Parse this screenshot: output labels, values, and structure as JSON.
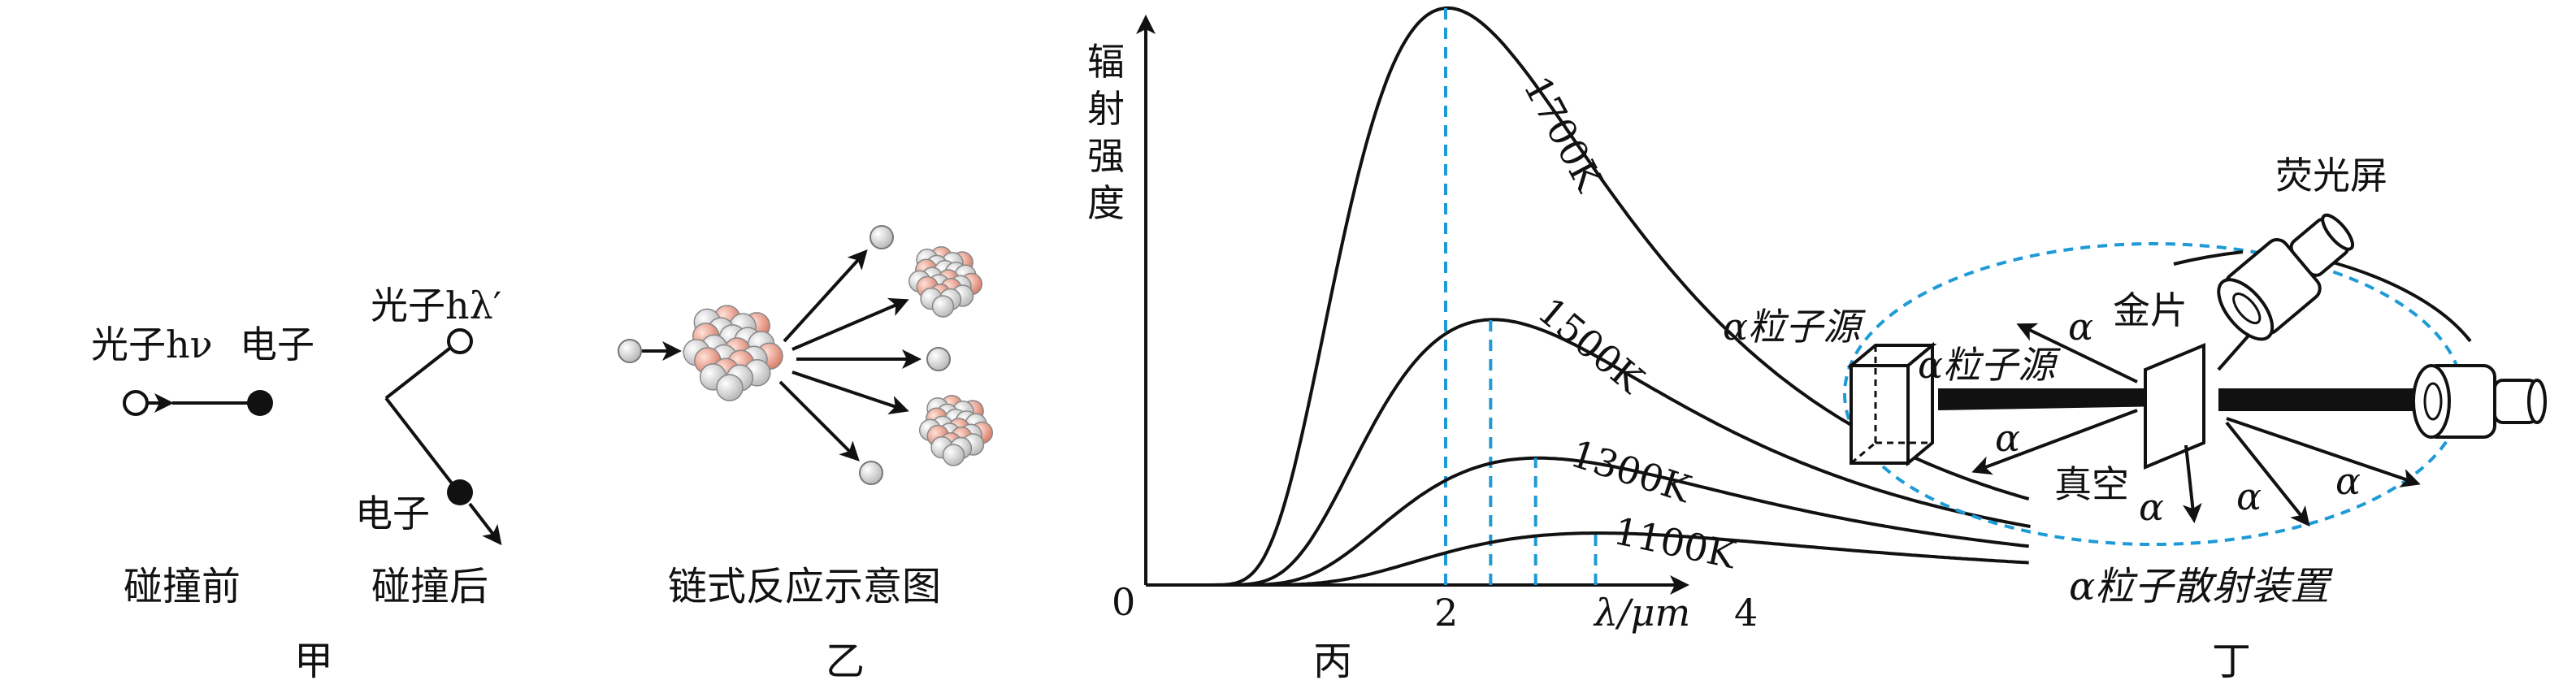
{
  "panel_jia": {
    "photon_before": "光子hν",
    "electron_before": "电子",
    "caption_before": "碰撞前",
    "photon_after": "光子hλ′",
    "electron_after": "电子",
    "caption_after": "碰撞后",
    "panel_label": "甲"
  },
  "panel_yi": {
    "caption": "链式反应示意图",
    "panel_label": "乙",
    "colors": {
      "nucleon_red": "#e89a86",
      "nucleon_gray": "#d9d9d9"
    }
  },
  "panel_bing": {
    "panel_label": "丙",
    "ylabel_chars": [
      "辐",
      "射",
      "强",
      "度"
    ],
    "origin_label": "0",
    "xlabel": "λ/μm",
    "chart_data": {
      "type": "line",
      "title": "",
      "xlabel": "λ/μm",
      "ylabel": "辐射强度",
      "x_ticks": [
        2,
        4
      ],
      "xlim": [
        0,
        6
      ],
      "series": [
        {
          "name": "1700K",
          "peak_x": 2.0,
          "peak_y": 1.0
        },
        {
          "name": "1500K",
          "peak_x": 2.3,
          "peak_y": 0.46
        },
        {
          "name": "1300K",
          "peak_x": 2.6,
          "peak_y": 0.22
        },
        {
          "name": "1100K",
          "peak_x": 3.0,
          "peak_y": 0.09
        }
      ],
      "dashed_color": "#1e9bd7"
    }
  },
  "panel_ding": {
    "screen_label": "荧光屏",
    "foil_label": "金片",
    "source_label": "α粒子源",
    "beam_label": "α粒子源",
    "vacuum_label": "真空",
    "alpha": "α",
    "caption": "α粒子散射装置",
    "panel_label": "丁",
    "colors": {
      "vacuum_boundary": "#1e9bd7"
    }
  }
}
